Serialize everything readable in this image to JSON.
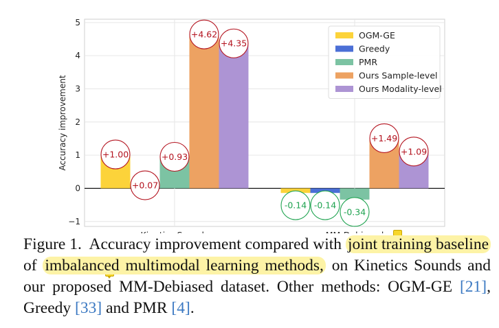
{
  "chart_data": {
    "type": "bar",
    "ylabel": "Accuracy improvement",
    "xlabel": "",
    "ylim": [
      -1.15,
      5.1
    ],
    "yticks": [
      -1,
      0,
      1,
      2,
      3,
      4,
      5
    ],
    "grid": true,
    "legend_position": "top-right",
    "categories": [
      "Kinetics Sounds",
      "MM-Debiased"
    ],
    "series": [
      {
        "name": "OGM-GE",
        "color": "#fcd33a",
        "values": [
          1.0,
          -0.14
        ],
        "labels": [
          "+1.00",
          "-0.14"
        ]
      },
      {
        "name": "Greedy",
        "color": "#4b6fd6",
        "values": [
          0.07,
          -0.14
        ],
        "labels": [
          "+0.07",
          "-0.14"
        ]
      },
      {
        "name": "PMR",
        "color": "#7cc3a3",
        "values": [
          0.93,
          -0.34
        ],
        "labels": [
          "+0.93",
          "-0.34"
        ]
      },
      {
        "name": "Ours Sample-level",
        "color": "#eda262",
        "values": [
          4.62,
          1.49
        ],
        "labels": [
          "+4.62",
          "+1.49"
        ]
      },
      {
        "name": "Ours Modality-level",
        "color": "#ad94d4",
        "values": [
          4.35,
          1.09
        ],
        "labels": [
          "+4.35",
          "+1.09"
        ]
      }
    ],
    "positive_label_color": "#b3121e",
    "negative_label_color": "#1fa350"
  },
  "caption": {
    "figure_label": "Figure 1.",
    "text_1": "Accuracy improvement compared with",
    "highlight_1": "joint training baseline",
    "text_2": "of",
    "highlight_2": "imbalanced multimodal learning methods,",
    "text_3": "on Kinetics Sounds and our proposed MM-Debiased dataset. Other methods: OGM-GE",
    "ref_1": "[21]",
    "text_4": ", Greedy",
    "ref_2": "[33]",
    "text_5": "and PMR",
    "ref_3": "[4]",
    "text_6": "."
  }
}
